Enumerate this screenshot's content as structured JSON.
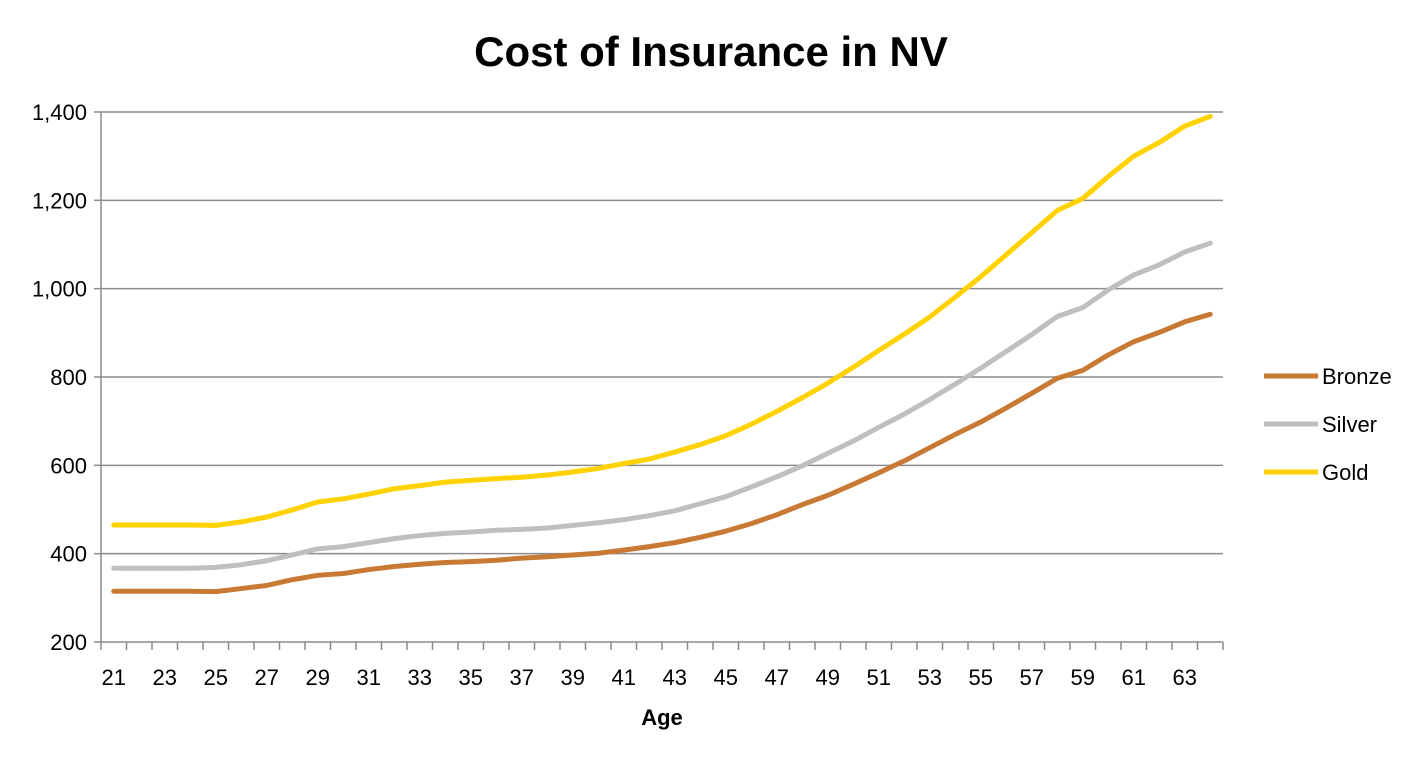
{
  "chart_data": {
    "type": "line",
    "title": "Cost of Insurance in NV",
    "xlabel": "Age",
    "ylabel": "",
    "ylim": [
      200,
      1400
    ],
    "yticks": [
      200,
      400,
      600,
      800,
      1000,
      1200,
      1400
    ],
    "ytick_labels": [
      "200",
      "400",
      "600",
      "800",
      "1,000",
      "1,200",
      "1,400"
    ],
    "x": [
      21,
      22,
      23,
      24,
      25,
      26,
      27,
      28,
      29,
      30,
      31,
      32,
      33,
      34,
      35,
      36,
      37,
      38,
      39,
      40,
      41,
      42,
      43,
      44,
      45,
      46,
      47,
      48,
      49,
      50,
      51,
      52,
      53,
      54,
      55,
      56,
      57,
      58,
      59,
      60,
      61,
      62,
      63,
      64
    ],
    "xtick_labels": [
      "21",
      "23",
      "25",
      "27",
      "29",
      "31",
      "33",
      "35",
      "37",
      "39",
      "41",
      "43",
      "45",
      "47",
      "49",
      "51",
      "53",
      "55",
      "57",
      "59",
      "61",
      "63"
    ],
    "grid": "horizontal",
    "legend": "right",
    "series": [
      {
        "name": "Bronze",
        "color": "#C87A34",
        "values": [
          315,
          315,
          315,
          315,
          314,
          321,
          328,
          341,
          351,
          355,
          364,
          371,
          376,
          380,
          382,
          385,
          390,
          393,
          397,
          401,
          408,
          416,
          425,
          437,
          451,
          468,
          488,
          511,
          532,
          557,
          583,
          610,
          640,
          670,
          698,
          730,
          763,
          797,
          815,
          850,
          880,
          901,
          925,
          942
        ]
      },
      {
        "name": "Silver",
        "color": "#BFBFBF",
        "values": [
          367,
          367,
          367,
          367,
          369,
          375,
          384,
          397,
          411,
          416,
          425,
          434,
          441,
          446,
          449,
          453,
          455,
          458,
          464,
          470,
          477,
          486,
          497,
          513,
          529,
          551,
          574,
          599,
          627,
          655,
          686,
          716,
          749,
          784,
          820,
          858,
          896,
          937,
          957,
          997,
          1031,
          1054,
          1083,
          1103
        ]
      },
      {
        "name": "Gold",
        "color": "#FFD200",
        "values": [
          465,
          465,
          465,
          465,
          464,
          472,
          483,
          499,
          517,
          524,
          535,
          547,
          554,
          562,
          566,
          570,
          573,
          578,
          585,
          593,
          604,
          614,
          630,
          647,
          667,
          693,
          722,
          753,
          786,
          822,
          860,
          897,
          936,
          981,
          1027,
          1077,
          1127,
          1177,
          1204,
          1254,
          1300,
          1331,
          1368,
          1390
        ]
      }
    ]
  }
}
